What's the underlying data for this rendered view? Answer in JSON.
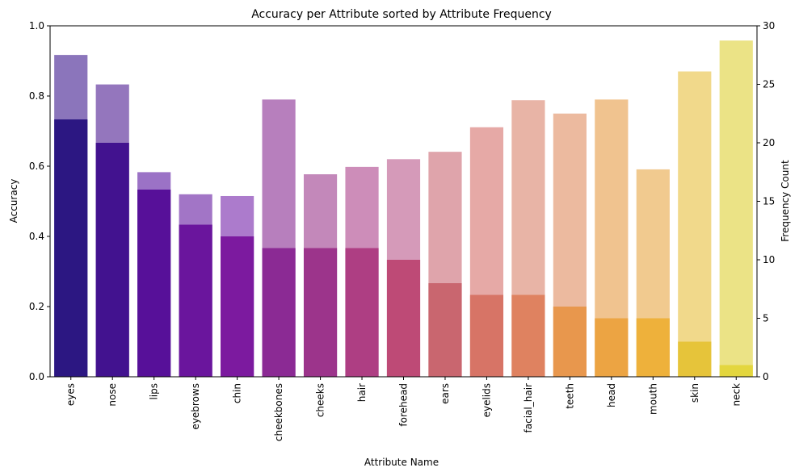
{
  "chart_data": {
    "type": "bar",
    "title": "Accuracy per Attribute sorted by Attribute Frequency",
    "xlabel": "Attribute Name",
    "ylabel": "Accuracy",
    "y2label": "Frequency Count",
    "ylim": [
      0,
      1.0
    ],
    "y2lim": [
      0,
      30
    ],
    "yticks": [
      "0.0",
      "0.2",
      "0.4",
      "0.6",
      "0.8",
      "1.0"
    ],
    "y2ticks": [
      "0",
      "5",
      "10",
      "15",
      "20",
      "25",
      "30"
    ],
    "grid": false,
    "categories": [
      "eyes",
      "nose",
      "lips",
      "eyebrows",
      "chin",
      "cheekbones",
      "cheeks",
      "hair",
      "forehead",
      "ears",
      "eyelids",
      "facial_hair",
      "teeth",
      "head",
      "mouth",
      "skin",
      "neck"
    ],
    "series": [
      {
        "axis": "left",
        "style": "light",
        "values": [
          0.917,
          0.833,
          0.583,
          0.52,
          0.515,
          0.79,
          0.577,
          0.598,
          0.62,
          0.641,
          0.711,
          0.788,
          0.75,
          0.79,
          0.591,
          0.87,
          0.958
        ]
      },
      {
        "axis": "right",
        "style": "dark",
        "values": [
          22,
          20,
          16,
          13,
          12,
          11,
          11,
          11,
          10,
          8,
          7,
          7,
          6,
          5,
          5,
          3,
          1
        ]
      }
    ],
    "colors": {
      "dark": [
        "#2c1782",
        "#42128f",
        "#571099",
        "#6a159d",
        "#7c1a9f",
        "#8b2a94",
        "#9c348b",
        "#ae3e83",
        "#be4a76",
        "#c9666f",
        "#d77466",
        "#df8260",
        "#e8974d",
        "#eca443",
        "#eeb13b",
        "#e6c43a",
        "#e3d63e"
      ],
      "light": [
        "#8b75bb",
        "#9476bd",
        "#9b72c6",
        "#a275c6",
        "#ac7bcc",
        "#b77fbd",
        "#c388ba",
        "#cd8db9",
        "#d59ab9",
        "#dfa4ab",
        "#e6a9a6",
        "#e8b4a6",
        "#ecba9f",
        "#f0c38f",
        "#f1ca8f",
        "#f1d98b",
        "#ebe386"
      ]
    }
  }
}
